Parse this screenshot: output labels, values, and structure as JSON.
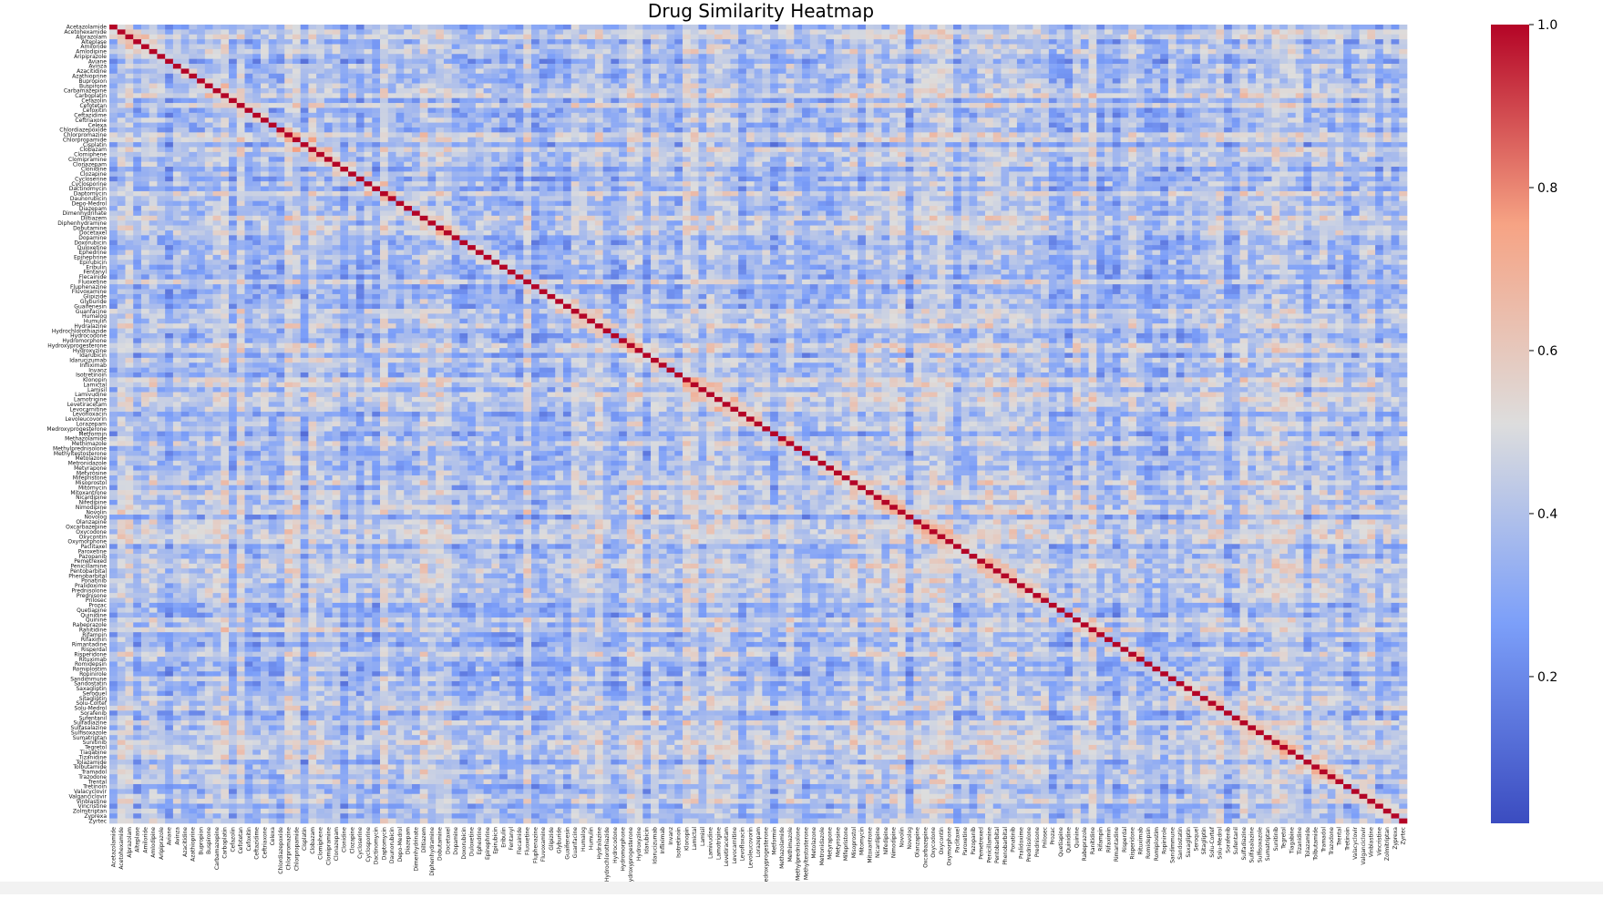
{
  "chart_data": {
    "type": "heatmap",
    "title": "Drug Similarity Heatmap",
    "xlabel": "",
    "ylabel": "",
    "colormap": "coolwarm",
    "colors": {
      "low": "#3b4cc0",
      "mid": "#dddddd",
      "high": "#b40426"
    },
    "value_range": [
      0.02,
      1.0
    ],
    "colorbar_ticks": [
      0.2,
      0.4,
      0.6,
      0.8,
      1.0
    ],
    "colorbar_tick_labels": [
      "0.2",
      "0.4",
      "0.6",
      "0.8",
      "1.0"
    ],
    "diagonal_value": 1.0,
    "typical_off_diagonal_range": [
      0.25,
      0.55
    ],
    "labels": [
      "Acetazolamide",
      "Acetohexamide",
      "Alprazolam",
      "Alteplase",
      "Amiloride",
      "Amlodipine",
      "Aripiprazole",
      "Aviane",
      "Avinza",
      "Azacitidine",
      "Azathioprine",
      "Bupropion",
      "Buspirone",
      "Carbamazepine",
      "Carboplatin",
      "Cefazolin",
      "Cefotetan",
      "Cefoxitin",
      "Ceftazidime",
      "Ceftriaxone",
      "Celexa",
      "Chlordiazepoxide",
      "Chlorpromazine",
      "Chlorpropamide",
      "Cisplatin",
      "Clobazam",
      "Clomiphene",
      "Clomipramine",
      "Clonazepam",
      "Clonidine",
      "Clozapine",
      "Cycloserine",
      "Cyclosporine",
      "Dactinomycin",
      "Daptomycin",
      "Daunorubicin",
      "Depo-Medrol",
      "Diazepam",
      "Dimenhydrinate",
      "Diltiazem",
      "Diphenhydramine",
      "Dobutamine",
      "Docetaxel",
      "Dopamine",
      "Doxorubicin",
      "Duloxetine",
      "Ephedrine",
      "Epinephrine",
      "Epirubicin",
      "Eribulin",
      "Fentanyl",
      "Flecainide",
      "Fluoxetine",
      "Fluphenazine",
      "Fluvoxamine",
      "Glipizide",
      "Glyburide",
      "Guaifenesin",
      "Guanfacine",
      "Humalog",
      "Humulin",
      "Hydralazine",
      "Hydrochlorothiazide",
      "Hydrocodone",
      "Hydromorphone",
      "Hydroxyprogesterone",
      "Hydroxyzine",
      "Idarubicin",
      "Idarucizumab",
      "Infliximab",
      "Invanz",
      "Isotretinoin",
      "Klonopin",
      "Lamictal",
      "Lamisil",
      "Lamivudine",
      "Lamotrigine",
      "Levetiracetam",
      "Levocarnitine",
      "Levofloxacin",
      "Levoleucovorin",
      "Lorazepam",
      "Medroxyprogesterone",
      "Metformin",
      "Methazolamide",
      "Methimazole",
      "Methylprednisolone",
      "Methyltestosterone",
      "Metolazone",
      "Metronidazole",
      "Metyrapone",
      "Metyrosine",
      "Mifepristone",
      "Misoprostol",
      "Mitomycin",
      "Mitoxantrone",
      "Nicardipine",
      "Nifedipine",
      "Nimodipine",
      "Novolin",
      "Novolog",
      "Olanzapine",
      "Oxcarbazepine",
      "Oxycodone",
      "Oxycontin",
      "Oxymorphone",
      "Paclitaxel",
      "Paroxetine",
      "Pazopanib",
      "Pemetrexed",
      "Penicillamine",
      "Pentobarbital",
      "Phenobarbital",
      "Ponatinib",
      "Pralidoxime",
      "Prednisolone",
      "Prednisone",
      "Prilosec",
      "Prozac",
      "Quetiapine",
      "Quinidine",
      "Quinine",
      "Rabeprazole",
      "Ranitidine",
      "Rifampin",
      "Rifaximin",
      "Rimantadine",
      "Risperdal",
      "Risperidone",
      "Rituximab",
      "Romidepsin",
      "Romiplostim",
      "Ropinirole",
      "Sandimmune",
      "Sandostatin",
      "Saxagliptin",
      "Seroquel",
      "Sitagliptin",
      "Solu-Cortef",
      "Solu-Medrol",
      "Sorafenib",
      "Sufentanil",
      "Sulfadiazine",
      "Sulfasalazine",
      "Sulfisoxazole",
      "Sumatriptan",
      "Sunitinib",
      "Tegretol",
      "Tiagabine",
      "Tizanidine",
      "Tolazamide",
      "Tolbutamide",
      "Tramadol",
      "Trazodone",
      "Trental",
      "Tretinoin",
      "Valacyclovir",
      "Valganciclovir",
      "Vinblastine",
      "Vincristine",
      "Zolmitriptan",
      "Zyprexa",
      "Zyrtec"
    ]
  }
}
